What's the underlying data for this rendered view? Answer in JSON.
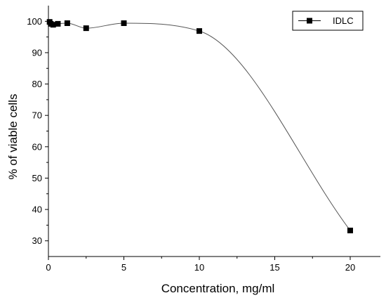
{
  "chart_data": {
    "type": "scatter",
    "title": "",
    "xlabel": "Concentration, mg/ml",
    "ylabel": "% of viable cells",
    "xlim": [
      0,
      22
    ],
    "ylim": [
      25,
      105
    ],
    "xticks": [
      0,
      5,
      10,
      15,
      20
    ],
    "yticks": [
      30,
      40,
      50,
      60,
      70,
      80,
      90,
      100
    ],
    "grid": false,
    "legend_position": "top-right",
    "series": [
      {
        "name": "IDLC",
        "marker": "square",
        "line": "smooth",
        "color": "#000000",
        "x": [
          0.078,
          0.156,
          0.312,
          0.625,
          1.25,
          2.5,
          5,
          10,
          20
        ],
        "y": [
          99.8,
          99.2,
          98.9,
          99.2,
          99.4,
          97.8,
          99.4,
          96.9,
          33.3
        ]
      }
    ]
  }
}
